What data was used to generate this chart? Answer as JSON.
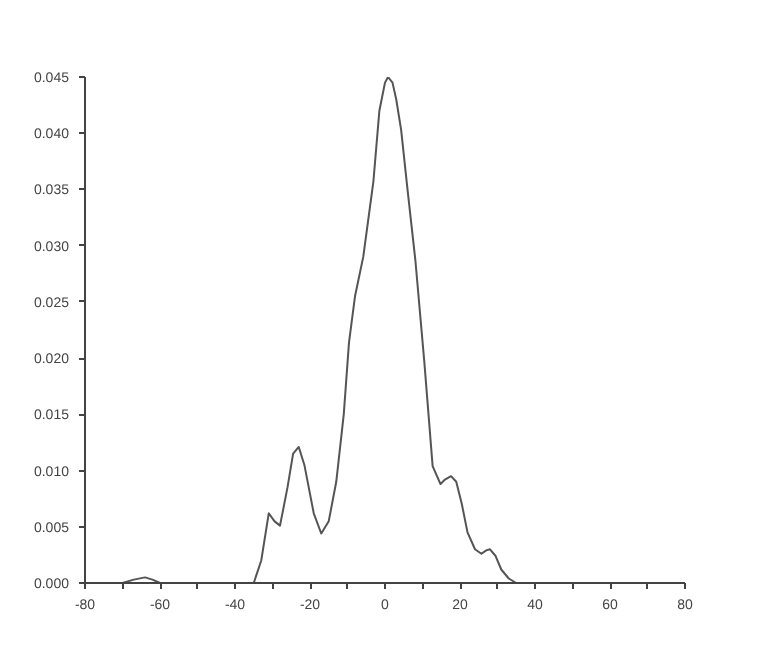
{
  "chart_data": {
    "type": "line",
    "color": "#555555",
    "x": [
      -70,
      -67,
      -64,
      -62,
      -60,
      -50,
      -40,
      -35,
      -33,
      -31,
      -29.5,
      -28,
      -26,
      -24.5,
      -23,
      -21.5,
      -19,
      -17,
      -15,
      -13,
      -11,
      -9.6,
      -8,
      -5.8,
      -3.1,
      -1.5,
      0,
      0.8,
      2,
      3,
      4.3,
      6,
      8.1,
      10.5,
      12.7,
      14.8,
      16,
      17.6,
      19,
      20.5,
      22,
      24,
      25.7,
      27,
      28,
      29.5,
      31,
      33,
      35,
      40,
      50,
      60,
      70
    ],
    "values": [
      0,
      0.0003,
      0.0005,
      0.0003,
      0,
      0,
      0,
      0,
      0.002,
      0.0062,
      0.0055,
      0.0051,
      0.0085,
      0.0115,
      0.0121,
      0.0105,
      0.0062,
      0.0044,
      0.0055,
      0.009,
      0.015,
      0.0214,
      0.0255,
      0.029,
      0.0357,
      0.042,
      0.0445,
      0.045,
      0.0445,
      0.043,
      0.0403,
      0.035,
      0.0287,
      0.0196,
      0.0104,
      0.0088,
      0.0092,
      0.0095,
      0.009,
      0.007,
      0.0045,
      0.003,
      0.0026,
      0.0029,
      0.003,
      0.0024,
      0.0012,
      0.0004,
      0,
      0,
      0,
      0,
      0
    ],
    "xlim": [
      -80,
      80
    ],
    "ylim": [
      0,
      0.045
    ],
    "xticks": [
      -80,
      {
        "value": -70,
        "label": null
      },
      -60,
      {
        "value": -50,
        "label": null
      },
      -40,
      {
        "value": -30,
        "label": null
      },
      -20,
      {
        "value": -10,
        "label": null
      },
      0,
      {
        "value": 10,
        "label": null
      },
      20,
      {
        "value": 30,
        "label": null
      },
      40,
      {
        "value": 50,
        "label": null
      },
      60,
      {
        "value": 70,
        "label": null
      },
      80
    ],
    "yticks": [
      {
        "value": 0,
        "label": "0.000"
      },
      {
        "value": 0.005,
        "label": "0.005"
      },
      {
        "value": 0.01,
        "label": "0.010"
      },
      {
        "value": 0.015,
        "label": "0.015"
      },
      {
        "value": 0.02,
        "label": "0.020"
      },
      {
        "value": 0.025,
        "label": "0.025"
      },
      {
        "value": 0.03,
        "label": "0.030"
      },
      {
        "value": 0.035,
        "label": "0.035"
      },
      {
        "value": 0.04,
        "label": "0.040"
      },
      {
        "value": 0.045,
        "label": "0.045"
      }
    ],
    "grid": false
  }
}
